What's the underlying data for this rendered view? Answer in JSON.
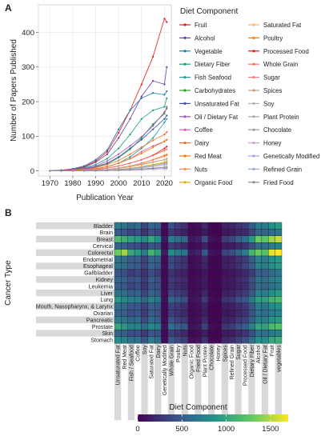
{
  "panels": {
    "a": {
      "label": "A"
    },
    "b": {
      "label": "B"
    }
  },
  "chart_data": [
    {
      "type": "line",
      "title": "",
      "xlabel": "Publication Year",
      "ylabel": "Number of Papers Published",
      "xlim": [
        1965,
        2023
      ],
      "ylim": [
        -15,
        480
      ],
      "xticks": [
        1970,
        1980,
        1990,
        2000,
        2010,
        2020
      ],
      "yticks": [
        0,
        100,
        200,
        300,
        400
      ],
      "grid": true,
      "legend": {
        "title": "Diet Component",
        "placement": "right",
        "columns": 2
      },
      "x": [
        1970,
        1975,
        1980,
        1985,
        1990,
        1995,
        2000,
        2005,
        2010,
        2015,
        2020,
        2021
      ],
      "series": [
        {
          "name": "Fruit",
          "color": "#e41a1c",
          "values": [
            0,
            2,
            5,
            12,
            28,
            55,
            110,
            175,
            250,
            330,
            440,
            430
          ]
        },
        {
          "name": "Alcohol",
          "color": "#6a3d9a",
          "values": [
            0,
            1,
            4,
            10,
            25,
            48,
            95,
            150,
            215,
            260,
            250,
            300
          ]
        },
        {
          "name": "Vegetable",
          "color": "#1f78b4",
          "values": [
            0,
            2,
            6,
            14,
            32,
            60,
            120,
            175,
            210,
            225,
            220,
            230
          ]
        },
        {
          "name": "Dietary Fiber",
          "color": "#1b9e77",
          "values": [
            0,
            1,
            4,
            8,
            18,
            35,
            65,
            105,
            150,
            175,
            185,
            210
          ]
        },
        {
          "name": "Fish Seafood",
          "color": "#1f9ea6",
          "values": [
            0,
            0,
            1,
            3,
            6,
            12,
            22,
            40,
            65,
            95,
            140,
            150
          ]
        },
        {
          "name": "Carbohydrates",
          "color": "#2ca02c",
          "values": [
            0,
            0,
            2,
            4,
            10,
            20,
            38,
            62,
            95,
            135,
            165,
            185
          ]
        },
        {
          "name": "Unsaturated Fat",
          "color": "#3f51b5",
          "values": [
            0,
            0,
            2,
            5,
            12,
            22,
            40,
            65,
            90,
            120,
            150,
            160
          ]
        },
        {
          "name": "Oil / Dietary Fat",
          "color": "#9b59b6",
          "values": [
            0,
            1,
            3,
            7,
            14,
            28,
            48,
            72,
            98,
            130,
            170,
            180
          ]
        },
        {
          "name": "Coffee",
          "color": "#d95fb5",
          "values": [
            0,
            0,
            1,
            3,
            6,
            12,
            22,
            35,
            55,
            72,
            85,
            90
          ]
        },
        {
          "name": "Dairy",
          "color": "#e8743b",
          "values": [
            0,
            0,
            2,
            4,
            9,
            18,
            30,
            48,
            68,
            88,
            105,
            112
          ]
        },
        {
          "name": "Red Meat",
          "color": "#f57c00",
          "values": [
            0,
            0,
            1,
            3,
            6,
            12,
            22,
            35,
            50,
            68,
            85,
            90
          ]
        },
        {
          "name": "Nuts",
          "color": "#ff9800",
          "values": [
            0,
            0,
            0,
            1,
            2,
            4,
            8,
            14,
            22,
            32,
            45,
            48
          ]
        },
        {
          "name": "Organic Food",
          "color": "#e6ab02",
          "values": [
            0,
            0,
            0,
            0,
            1,
            2,
            4,
            7,
            12,
            18,
            25,
            28
          ]
        },
        {
          "name": "Saturated Fat",
          "color": "#fdb462",
          "values": [
            0,
            0,
            1,
            2,
            4,
            8,
            14,
            22,
            32,
            45,
            60,
            62
          ]
        },
        {
          "name": "Poultry",
          "color": "#ff7f00",
          "values": [
            0,
            0,
            0,
            1,
            2,
            4,
            7,
            12,
            18,
            25,
            32,
            35
          ]
        },
        {
          "name": "Processed Food",
          "color": "#e31a1c",
          "values": [
            0,
            0,
            1,
            2,
            4,
            8,
            14,
            22,
            32,
            45,
            65,
            70
          ]
        },
        {
          "name": "Whole Grain",
          "color": "#ff6f61",
          "values": [
            0,
            0,
            0,
            1,
            2,
            4,
            8,
            14,
            22,
            32,
            42,
            45
          ]
        },
        {
          "name": "Sugar",
          "color": "#f08080",
          "values": [
            0,
            0,
            1,
            2,
            4,
            8,
            14,
            22,
            32,
            44,
            58,
            62
          ]
        },
        {
          "name": "Spices",
          "color": "#bfa07a",
          "values": [
            0,
            0,
            0,
            0,
            1,
            2,
            4,
            7,
            11,
            16,
            22,
            24
          ]
        },
        {
          "name": "Soy",
          "color": "#b0b0b0",
          "values": [
            0,
            0,
            0,
            1,
            2,
            4,
            8,
            14,
            20,
            26,
            32,
            34
          ]
        },
        {
          "name": "Plant Protein",
          "color": "#a6a6a6",
          "values": [
            0,
            0,
            0,
            0,
            1,
            2,
            4,
            7,
            10,
            15,
            20,
            22
          ]
        },
        {
          "name": "Chocolate",
          "color": "#9e9e9e",
          "values": [
            0,
            0,
            0,
            0,
            0,
            1,
            2,
            3,
            5,
            8,
            10,
            11
          ]
        },
        {
          "name": "Honey",
          "color": "#c7a3c9",
          "values": [
            0,
            0,
            0,
            0,
            0,
            1,
            1,
            2,
            3,
            5,
            7,
            8
          ]
        },
        {
          "name": "Genetically Modified",
          "color": "#b39ddb",
          "values": [
            0,
            0,
            0,
            0,
            0,
            1,
            2,
            3,
            4,
            5,
            6,
            6
          ]
        },
        {
          "name": "Refined Grain",
          "color": "#9fa8da",
          "values": [
            0,
            0,
            0,
            0,
            1,
            2,
            3,
            5,
            8,
            12,
            16,
            18
          ]
        },
        {
          "name": "Fried Food",
          "color": "#8c8c8c",
          "values": [
            0,
            0,
            0,
            0,
            0,
            1,
            2,
            3,
            5,
            7,
            10,
            11
          ]
        }
      ]
    },
    {
      "type": "heatmap",
      "title": "",
      "xlabel": "Diet Component",
      "ylabel": "Cancer Type",
      "rows": [
        "Bladder",
        "Brain",
        "Breast",
        "Cervical",
        "Colorectal",
        "Endometrial",
        "Esophageal",
        "Gallbladder",
        "Kidney",
        "Leukemia",
        "Liver",
        "Lung",
        "Mouth, Nasopharynx, & Larynx",
        "Ovarian",
        "Pancreatic",
        "Prostate",
        "Skin",
        "Stomach"
      ],
      "columns": [
        "Unsaturated Fat",
        "Red Meat",
        "Fish / Seafood",
        "Coffee",
        "Soy",
        "Saturated Fat",
        "Dairy",
        "Genetically Modified",
        "Whole Grain",
        "Poultry",
        "Nuts",
        "Organic Food",
        "Fried Food",
        "Plant Protein",
        "Chocolate",
        "Honey",
        "Spices",
        "Refined Grain",
        "Sugar",
        "Processed Food",
        "Dietary Fiber",
        "Alcohol",
        "Oil / Dietary Fat",
        "Fruit",
        "vegetables"
      ],
      "colorscale": {
        "name": "viridis",
        "min": 0,
        "max": 1700,
        "ticks": [
          0,
          500,
          1000,
          1500
        ]
      },
      "values": [
        [
          700,
          650,
          550,
          600,
          350,
          550,
          500,
          50,
          400,
          300,
          250,
          50,
          80,
          200,
          30,
          20,
          150,
          180,
          250,
          300,
          500,
          700,
          700,
          850,
          900
        ],
        [
          500,
          450,
          350,
          400,
          250,
          400,
          350,
          40,
          280,
          200,
          150,
          40,
          60,
          120,
          20,
          15,
          100,
          120,
          180,
          200,
          350,
          550,
          550,
          600,
          650
        ],
        [
          1150,
          1050,
          950,
          900,
          800,
          1000,
          850,
          120,
          700,
          600,
          550,
          100,
          150,
          400,
          80,
          50,
          300,
          350,
          500,
          600,
          900,
          1300,
          1250,
          1450,
          1550
        ],
        [
          550,
          500,
          400,
          400,
          300,
          450,
          400,
          40,
          300,
          250,
          200,
          40,
          60,
          150,
          20,
          15,
          120,
          140,
          200,
          250,
          400,
          600,
          600,
          700,
          750
        ],
        [
          1300,
          1450,
          1000,
          900,
          700,
          1100,
          950,
          130,
          800,
          700,
          650,
          120,
          180,
          450,
          90,
          60,
          350,
          400,
          550,
          700,
          1100,
          1300,
          1200,
          1650,
          1700
        ],
        [
          650,
          600,
          500,
          500,
          350,
          550,
          500,
          50,
          380,
          300,
          250,
          50,
          80,
          200,
          30,
          20,
          150,
          170,
          250,
          300,
          500,
          750,
          700,
          850,
          900
        ],
        [
          650,
          600,
          500,
          500,
          350,
          550,
          450,
          50,
          380,
          300,
          250,
          50,
          90,
          180,
          30,
          20,
          150,
          170,
          250,
          350,
          500,
          750,
          700,
          850,
          900
        ],
        [
          450,
          400,
          300,
          350,
          250,
          400,
          300,
          30,
          250,
          180,
          150,
          30,
          50,
          100,
          15,
          10,
          80,
          100,
          150,
          200,
          300,
          500,
          500,
          600,
          650
        ],
        [
          550,
          500,
          400,
          450,
          300,
          500,
          400,
          40,
          300,
          250,
          200,
          40,
          60,
          130,
          20,
          15,
          100,
          130,
          200,
          250,
          400,
          650,
          600,
          700,
          750
        ],
        [
          500,
          450,
          350,
          400,
          280,
          450,
          400,
          40,
          280,
          220,
          180,
          40,
          60,
          120,
          20,
          15,
          100,
          120,
          180,
          220,
          380,
          600,
          550,
          650,
          700
        ],
        [
          650,
          600,
          500,
          550,
          350,
          550,
          450,
          50,
          350,
          300,
          250,
          50,
          80,
          180,
          30,
          20,
          150,
          170,
          250,
          300,
          450,
          750,
          700,
          850,
          900
        ],
        [
          900,
          800,
          700,
          700,
          550,
          750,
          650,
          80,
          550,
          450,
          400,
          70,
          110,
          300,
          50,
          35,
          250,
          280,
          400,
          450,
          700,
          950,
          950,
          1100,
          1150
        ],
        [
          600,
          550,
          450,
          450,
          330,
          500,
          450,
          45,
          330,
          280,
          230,
          45,
          70,
          160,
          25,
          18,
          130,
          150,
          220,
          280,
          450,
          700,
          650,
          800,
          850
        ],
        [
          550,
          500,
          400,
          450,
          300,
          500,
          400,
          40,
          300,
          250,
          200,
          40,
          60,
          140,
          20,
          15,
          110,
          130,
          200,
          250,
          420,
          650,
          600,
          700,
          750
        ],
        [
          700,
          650,
          550,
          600,
          380,
          600,
          500,
          55,
          420,
          320,
          280,
          55,
          85,
          200,
          32,
          22,
          160,
          190,
          280,
          330,
          520,
          750,
          720,
          880,
          920
        ],
        [
          1000,
          900,
          750,
          750,
          600,
          800,
          700,
          90,
          600,
          500,
          450,
          80,
          120,
          330,
          55,
          40,
          270,
          300,
          420,
          500,
          750,
          1000,
          950,
          1150,
          1200
        ],
        [
          550,
          500,
          400,
          400,
          300,
          450,
          400,
          40,
          300,
          250,
          200,
          40,
          60,
          140,
          20,
          15,
          120,
          130,
          200,
          250,
          400,
          650,
          600,
          700,
          750
        ],
        [
          800,
          750,
          650,
          650,
          450,
          700,
          600,
          60,
          480,
          380,
          320,
          60,
          100,
          250,
          40,
          28,
          200,
          230,
          330,
          400,
          620,
          850,
          820,
          1000,
          1050
        ]
      ]
    }
  ]
}
